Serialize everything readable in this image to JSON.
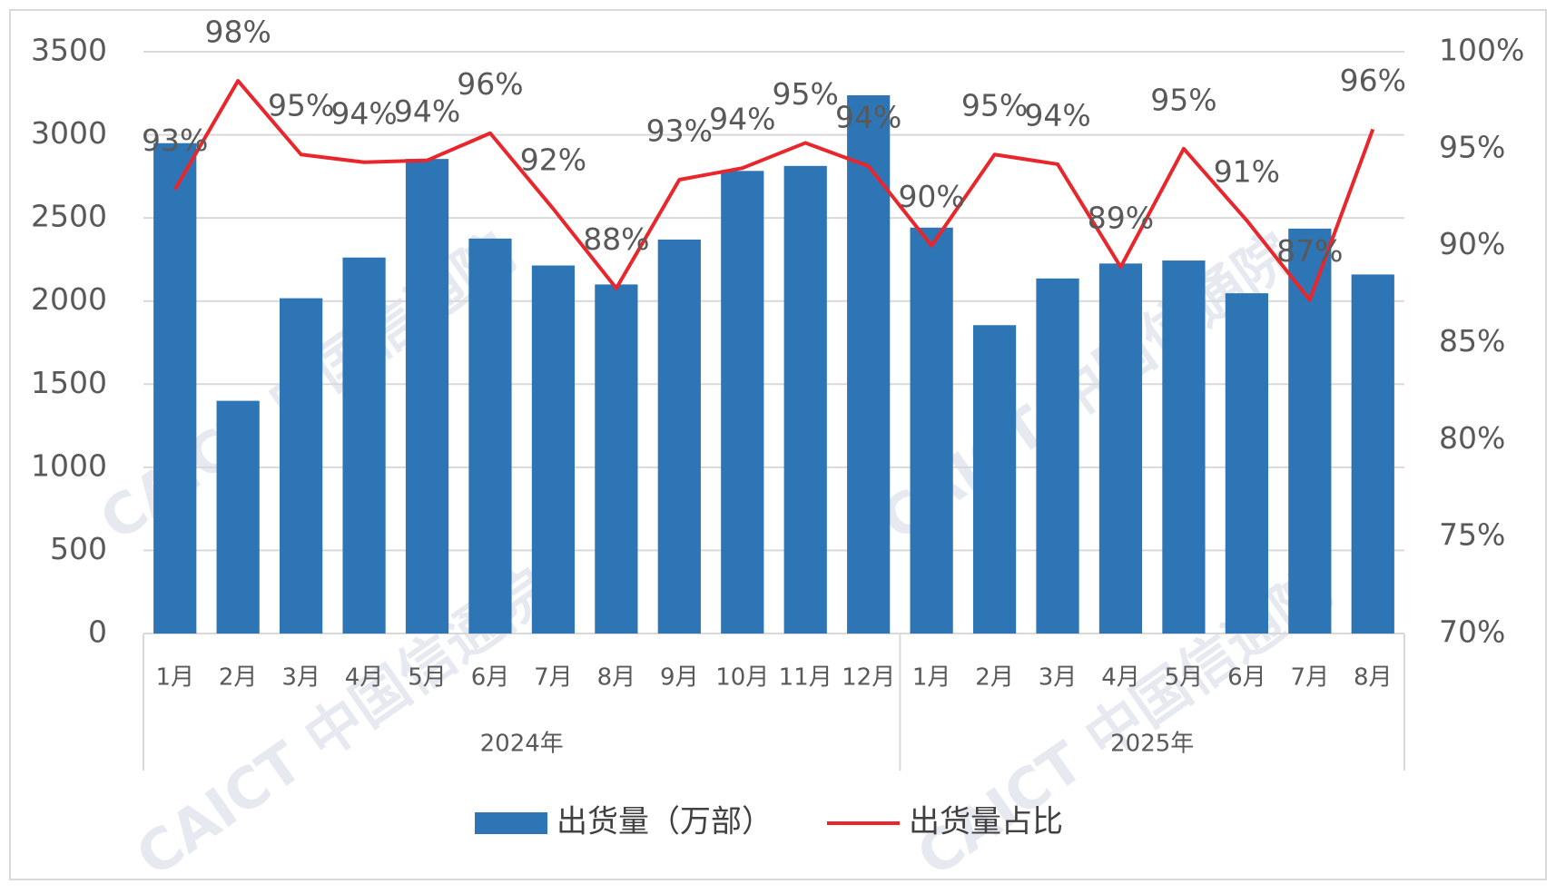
{
  "chart_data": {
    "type": "bar-line",
    "groups": [
      {
        "label": "2024年",
        "categories": [
          "1月",
          "2月",
          "3月",
          "4月",
          "5月",
          "6月",
          "7月",
          "8月",
          "9月",
          "10月",
          "11月",
          "12月"
        ]
      },
      {
        "label": "2025年",
        "categories": [
          "1月",
          "2月",
          "3月",
          "4月",
          "5月",
          "6月",
          "7月",
          "8月"
        ]
      }
    ],
    "series": [
      {
        "name": "出货量（万部）",
        "type": "bar",
        "color": "#2e75b6",
        "values": [
          2950,
          1400,
          2017,
          2262,
          2855,
          2376,
          2214,
          2100,
          2370,
          2783,
          2813,
          3238,
          2442,
          1855,
          2136,
          2226,
          2244,
          2047,
          2436,
          2160
        ]
      },
      {
        "name": "出货量占比",
        "type": "line",
        "axis": "y2",
        "color": "#e8262b",
        "values": [
          92.9,
          98.5,
          94.7,
          94.3,
          94.4,
          95.8,
          91.9,
          87.8,
          93.4,
          94.0,
          95.3,
          94.1,
          90.0,
          94.7,
          94.2,
          88.9,
          95.0,
          91.3,
          87.2,
          96.0
        ],
        "value_labels": [
          "93%",
          "98%",
          "95%",
          "94%",
          "94%",
          "96%",
          "92%",
          "88%",
          "93%",
          "94%",
          "95%",
          "94%",
          "90%",
          "95%",
          "94%",
          "89%",
          "95%",
          "91%",
          "87%",
          "96%"
        ]
      }
    ],
    "ylim": [
      0,
      3500
    ],
    "yticks": [
      0,
      500,
      1000,
      1500,
      2000,
      2500,
      3000,
      3500
    ],
    "y2lim": [
      70,
      100
    ],
    "y2ticks": [
      {
        "value": 70,
        "label": "70%"
      },
      {
        "value": 75,
        "label": "75%"
      },
      {
        "value": 80,
        "label": "80%"
      },
      {
        "value": 85,
        "label": "85%"
      },
      {
        "value": 90,
        "label": "90%"
      },
      {
        "value": 95,
        "label": "95%"
      },
      {
        "value": 100,
        "label": "100%"
      }
    ],
    "grid": true,
    "legend": "bottom",
    "watermark": "CAICT 中国信通院"
  }
}
